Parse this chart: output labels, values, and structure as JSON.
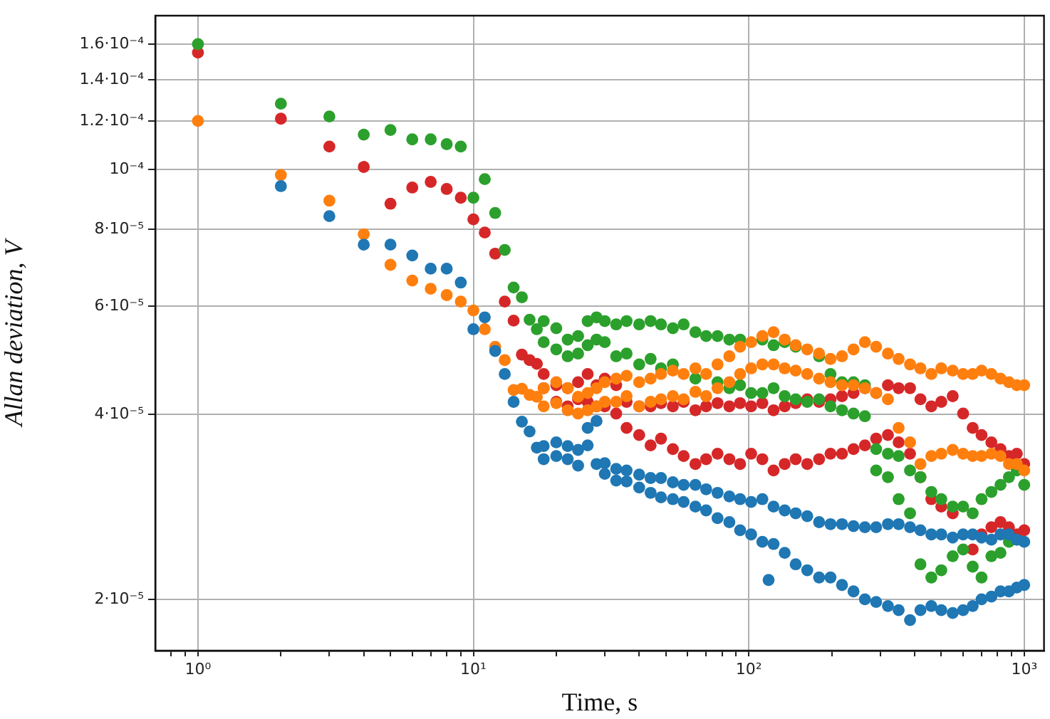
{
  "chart_data": {
    "type": "scatter",
    "xlabel": "Time, s",
    "ylabel": "Allan deviation, V",
    "log": "xy",
    "grid": true,
    "marker": "circle",
    "legend": false,
    "xlim": [
      0.71,
      1180
    ],
    "ylim": [
      1.65e-05,
      0.000178
    ],
    "xticks": [
      {
        "value": 0.8,
        "label": null
      },
      {
        "value": 0.9,
        "label": null
      },
      {
        "value": 1,
        "label": "10⁰"
      },
      {
        "value": 2,
        "label": null
      },
      {
        "value": 3,
        "label": null
      },
      {
        "value": 4,
        "label": null
      },
      {
        "value": 5,
        "label": null
      },
      {
        "value": 6,
        "label": null
      },
      {
        "value": 7,
        "label": null
      },
      {
        "value": 8,
        "label": null
      },
      {
        "value": 9,
        "label": null
      },
      {
        "value": 10,
        "label": "10¹"
      },
      {
        "value": 20,
        "label": null
      },
      {
        "value": 30,
        "label": null
      },
      {
        "value": 40,
        "label": null
      },
      {
        "value": 50,
        "label": null
      },
      {
        "value": 60,
        "label": null
      },
      {
        "value": 70,
        "label": null
      },
      {
        "value": 80,
        "label": null
      },
      {
        "value": 90,
        "label": null
      },
      {
        "value": 100,
        "label": "10²"
      },
      {
        "value": 200,
        "label": null
      },
      {
        "value": 300,
        "label": null
      },
      {
        "value": 400,
        "label": null
      },
      {
        "value": 500,
        "label": null
      },
      {
        "value": 600,
        "label": null
      },
      {
        "value": 700,
        "label": null
      },
      {
        "value": 800,
        "label": null
      },
      {
        "value": 900,
        "label": null
      },
      {
        "value": 1000,
        "label": "10³"
      }
    ],
    "yticks": [
      {
        "value": 2e-05,
        "label": "2·10⁻⁵"
      },
      {
        "value": 4e-05,
        "label": "4·10⁻⁵"
      },
      {
        "value": 6e-05,
        "label": "6·10⁻⁵"
      },
      {
        "value": 8e-05,
        "label": "8·10⁻⁵"
      },
      {
        "value": 0.0001,
        "label": "10⁻⁴"
      },
      {
        "value": 0.00012,
        "label": "1.2·10⁻⁴"
      },
      {
        "value": 0.00014,
        "label": "1.4·10⁻⁴"
      },
      {
        "value": 0.00016,
        "label": "1.6·10⁻⁴"
      }
    ],
    "series": [
      {
        "color": "#1f77b4",
        "x": [
          2,
          3,
          4,
          5,
          6,
          7,
          8,
          9,
          10,
          11,
          12,
          13,
          14,
          15,
          16,
          17,
          18,
          18,
          20,
          20,
          22,
          22,
          24,
          24,
          26,
          26,
          28,
          28,
          30,
          30,
          33,
          33,
          36,
          36,
          40,
          40,
          44,
          44,
          48,
          48,
          53,
          53,
          58,
          58,
          64,
          64,
          70,
          70,
          77,
          77,
          85,
          85,
          93,
          93,
          102,
          102,
          112,
          112,
          118,
          123,
          123,
          135,
          135,
          148,
          148,
          163,
          163,
          180,
          180,
          198,
          198,
          218,
          218,
          240,
          240,
          264,
          264,
          290,
          290,
          320,
          320,
          350,
          350,
          385,
          385,
          420,
          420,
          460,
          460,
          500,
          500,
          550,
          550,
          600,
          600,
          650,
          650,
          700,
          700,
          760,
          760,
          820,
          820,
          880,
          880,
          940,
          940,
          1000,
          1000
        ],
        "values": [
          9.4e-05,
          8.4e-05,
          7.55e-05,
          7.55e-05,
          7.25e-05,
          6.9e-05,
          6.9e-05,
          6.55e-05,
          5.5e-05,
          5.75e-05,
          5.07e-05,
          4.65e-05,
          4.19e-05,
          3.89e-05,
          3.75e-05,
          3.53e-05,
          3.55e-05,
          3.38e-05,
          3.6e-05,
          3.42e-05,
          3.55e-05,
          3.38e-05,
          3.5e-05,
          3.3e-05,
          3.8e-05,
          3.56e-05,
          3.9e-05,
          3.32e-05,
          3.33e-05,
          3.2e-05,
          3.26e-05,
          3.12e-05,
          3.24e-05,
          3.11e-05,
          3.19e-05,
          3.04e-05,
          3.15e-05,
          2.98e-05,
          3.15e-05,
          2.93e-05,
          3.1e-05,
          2.91e-05,
          3.07e-05,
          2.88e-05,
          3.07e-05,
          2.83e-05,
          3.02e-05,
          2.79e-05,
          2.98e-05,
          2.71e-05,
          2.94e-05,
          2.67e-05,
          2.91e-05,
          2.59e-05,
          2.88e-05,
          2.55e-05,
          2.91e-05,
          2.48e-05,
          2.15e-05,
          2.83e-05,
          2.46e-05,
          2.79e-05,
          2.38e-05,
          2.76e-05,
          2.28e-05,
          2.73e-05,
          2.23e-05,
          2.67e-05,
          2.17e-05,
          2.65e-05,
          2.17e-05,
          2.65e-05,
          2.11e-05,
          2.63e-05,
          2.06e-05,
          2.62e-05,
          2e-05,
          2.62e-05,
          1.98e-05,
          2.65e-05,
          1.95e-05,
          2.65e-05,
          1.92e-05,
          2.62e-05,
          1.85e-05,
          2.59e-05,
          1.92e-05,
          2.55e-05,
          1.95e-05,
          2.55e-05,
          1.92e-05,
          2.52e-05,
          1.9e-05,
          2.55e-05,
          1.92e-05,
          2.55e-05,
          1.95e-05,
          2.52e-05,
          2e-05,
          2.5e-05,
          2.02e-05,
          2.55e-05,
          2.06e-05,
          2.55e-05,
          2.06e-05,
          2.5e-05,
          2.09e-05,
          2.48e-05,
          2.11e-05
        ]
      },
      {
        "color": "#ff7f0e",
        "x": [
          1,
          2,
          3,
          4,
          5,
          6,
          7,
          8,
          9,
          10,
          11,
          12,
          13,
          14,
          15,
          16,
          17,
          18,
          18,
          20,
          20,
          22,
          22,
          24,
          24,
          26,
          26,
          28,
          28,
          30,
          30,
          33,
          33,
          36,
          36,
          40,
          40,
          44,
          44,
          48,
          48,
          53,
          53,
          58,
          58,
          64,
          64,
          70,
          70,
          77,
          77,
          85,
          85,
          93,
          93,
          102,
          102,
          112,
          112,
          123,
          123,
          135,
          135,
          148,
          148,
          163,
          163,
          180,
          180,
          198,
          198,
          218,
          218,
          240,
          240,
          264,
          264,
          290,
          290,
          320,
          320,
          350,
          350,
          385,
          385,
          420,
          420,
          460,
          460,
          500,
          500,
          550,
          550,
          600,
          600,
          650,
          650,
          700,
          700,
          760,
          760,
          820,
          820,
          880,
          880,
          940,
          940,
          1000,
          1000
        ],
        "values": [
          0.00012,
          9.8e-05,
          8.9e-05,
          7.85e-05,
          7e-05,
          6.6e-05,
          6.4e-05,
          6.25e-05,
          6.1e-05,
          5.9e-05,
          5.5e-05,
          5.15e-05,
          4.9e-05,
          4.38e-05,
          4.4e-05,
          4.3e-05,
          4.27e-05,
          4.41e-05,
          4.12e-05,
          4.51e-05,
          4.17e-05,
          4.41e-05,
          4.06e-05,
          4.27e-05,
          4.01e-05,
          4.33e-05,
          4.06e-05,
          4.41e-05,
          4.12e-05,
          4.51e-05,
          4.19e-05,
          4.57e-05,
          4.19e-05,
          4.62e-05,
          4.28e-05,
          4.51e-05,
          4.12e-05,
          4.57e-05,
          4.19e-05,
          4.65e-05,
          4.23e-05,
          4.71e-05,
          4.28e-05,
          4.65e-05,
          4.23e-05,
          4.75e-05,
          4.35e-05,
          4.65e-05,
          4.28e-05,
          4.82e-05,
          4.41e-05,
          4.97e-05,
          4.51e-05,
          5.15e-05,
          4.65e-05,
          5.24e-05,
          4.75e-05,
          5.36e-05,
          4.82e-05,
          5.44e-05,
          4.82e-05,
          5.29e-05,
          4.75e-05,
          5.18e-05,
          4.71e-05,
          5.1e-05,
          4.65e-05,
          5.02e-05,
          4.57e-05,
          4.92e-05,
          4.51e-05,
          4.97e-05,
          4.46e-05,
          5.1e-05,
          4.46e-05,
          5.24e-05,
          4.41e-05,
          5.15e-05,
          4.33e-05,
          5.02e-05,
          4.23e-05,
          4.92e-05,
          3.8e-05,
          4.82e-05,
          3.6e-05,
          4.75e-05,
          3.32e-05,
          4.65e-05,
          3.42e-05,
          4.75e-05,
          3.45e-05,
          4.71e-05,
          3.5e-05,
          4.65e-05,
          3.45e-05,
          4.65e-05,
          3.42e-05,
          4.71e-05,
          3.42e-05,
          4.65e-05,
          3.45e-05,
          4.57e-05,
          3.42e-05,
          4.51e-05,
          3.32e-05,
          4.46e-05,
          3.32e-05,
          4.46e-05,
          3.24e-05
        ]
      },
      {
        "color": "#2ca02c",
        "x": [
          1,
          2,
          3,
          4,
          5,
          6,
          7,
          8,
          9,
          10,
          11,
          12,
          13,
          14,
          15,
          16,
          17,
          18,
          18,
          20,
          20,
          22,
          22,
          24,
          24,
          26,
          26,
          28,
          28,
          30,
          30,
          33,
          33,
          36,
          36,
          40,
          40,
          44,
          44,
          48,
          48,
          53,
          53,
          58,
          64,
          64,
          70,
          77,
          77,
          85,
          85,
          93,
          93,
          102,
          112,
          112,
          123,
          123,
          135,
          135,
          148,
          148,
          163,
          180,
          180,
          198,
          198,
          218,
          218,
          240,
          240,
          264,
          264,
          290,
          290,
          320,
          320,
          350,
          350,
          385,
          385,
          420,
          420,
          460,
          460,
          500,
          500,
          550,
          550,
          600,
          600,
          650,
          650,
          700,
          700,
          760,
          760,
          820,
          820,
          880,
          880,
          940,
          940,
          1000
        ],
        "values": [
          0.00016,
          0.000128,
          0.000122,
          0.000114,
          0.000116,
          0.000112,
          0.000112,
          0.00011,
          0.000109,
          9e-05,
          9.65e-05,
          8.5e-05,
          7.4e-05,
          6.43e-05,
          6.2e-05,
          5.7e-05,
          5.5e-05,
          5.67e-05,
          5.24e-05,
          5.52e-05,
          5.1e-05,
          5.29e-05,
          4.97e-05,
          5.36e-05,
          5.02e-05,
          5.67e-05,
          5.18e-05,
          5.75e-05,
          5.29e-05,
          5.67e-05,
          5.24e-05,
          5.6e-05,
          4.97e-05,
          5.67e-05,
          5.02e-05,
          5.6e-05,
          4.82e-05,
          5.67e-05,
          4.92e-05,
          5.6e-05,
          4.75e-05,
          5.52e-05,
          4.82e-05,
          5.6e-05,
          5.44e-05,
          4.57e-05,
          5.36e-05,
          5.36e-05,
          4.51e-05,
          5.29e-05,
          4.41e-05,
          5.29e-05,
          4.46e-05,
          4.33e-05,
          5.29e-05,
          4.33e-05,
          5.18e-05,
          4.41e-05,
          5.24e-05,
          4.28e-05,
          5.15e-05,
          4.23e-05,
          4.19e-05,
          4.97e-05,
          4.23e-05,
          4.65e-05,
          4.12e-05,
          4.51e-05,
          4.06e-05,
          4.51e-05,
          4.01e-05,
          4.46e-05,
          3.97e-05,
          3.51e-05,
          3.24e-05,
          3.45e-05,
          3.16e-05,
          3.42e-05,
          2.91e-05,
          3.24e-05,
          2.76e-05,
          3.16e-05,
          2.28e-05,
          2.99e-05,
          2.17e-05,
          2.91e-05,
          2.23e-05,
          2.83e-05,
          2.35e-05,
          2.83e-05,
          2.41e-05,
          2.76e-05,
          2.26e-05,
          2.91e-05,
          2.17e-05,
          2.99e-05,
          2.35e-05,
          3.07e-05,
          2.38e-05,
          3.16e-05,
          2.48e-05,
          3.24e-05,
          2.5e-05,
          3.07e-05
        ]
      },
      {
        "color": "#d62728",
        "x": [
          1,
          2,
          3,
          4,
          5,
          6,
          7,
          8,
          9,
          10,
          11,
          12,
          13,
          14,
          15,
          16,
          17,
          18,
          18,
          20,
          20,
          22,
          22,
          24,
          24,
          26,
          26,
          28,
          28,
          30,
          30,
          33,
          33,
          36,
          36,
          40,
          40,
          44,
          44,
          48,
          48,
          53,
          53,
          58,
          58,
          64,
          64,
          70,
          70,
          77,
          77,
          85,
          85,
          93,
          93,
          102,
          102,
          112,
          112,
          123,
          123,
          135,
          135,
          148,
          148,
          163,
          163,
          180,
          180,
          198,
          198,
          218,
          218,
          240,
          240,
          264,
          264,
          290,
          290,
          320,
          320,
          350,
          350,
          385,
          385,
          420,
          420,
          460,
          460,
          500,
          500,
          550,
          550,
          600,
          650,
          650,
          700,
          700,
          760,
          760,
          820,
          820,
          880,
          880,
          940,
          940,
          1000,
          1000
        ],
        "values": [
          0.000155,
          0.000121,
          0.000109,
          0.000101,
          8.8e-05,
          9.35e-05,
          9.55e-05,
          9.3e-05,
          9e-05,
          8.3e-05,
          7.9e-05,
          7.3e-05,
          6.1e-05,
          5.68e-05,
          5e-05,
          4.9e-05,
          4.83e-05,
          4.65e-05,
          4.41e-05,
          4.46e-05,
          4.19e-05,
          4.41e-05,
          4.12e-05,
          4.51e-05,
          4.23e-05,
          4.65e-05,
          4.19e-05,
          4.46e-05,
          4.12e-05,
          4.57e-05,
          4.12e-05,
          4.46e-05,
          4.01e-05,
          4.19e-05,
          3.8e-05,
          4.12e-05,
          3.7e-05,
          4.12e-05,
          3.56e-05,
          4.17e-05,
          3.65e-05,
          4.12e-05,
          3.51e-05,
          4.19e-05,
          3.42e-05,
          4.06e-05,
          3.32e-05,
          4.12e-05,
          3.38e-05,
          4.17e-05,
          3.45e-05,
          4.12e-05,
          3.38e-05,
          4.17e-05,
          3.32e-05,
          4.12e-05,
          3.45e-05,
          4.17e-05,
          3.38e-05,
          4.06e-05,
          3.24e-05,
          4.12e-05,
          3.32e-05,
          4.17e-05,
          3.38e-05,
          4.23e-05,
          3.32e-05,
          4.19e-05,
          3.38e-05,
          4.23e-05,
          3.45e-05,
          4.28e-05,
          3.45e-05,
          4.33e-05,
          3.51e-05,
          4.41e-05,
          3.56e-05,
          4.33e-05,
          3.65e-05,
          4.46e-05,
          3.7e-05,
          4.41e-05,
          3.6e-05,
          4.41e-05,
          3.45e-05,
          4.23e-05,
          3.16e-05,
          4.12e-05,
          2.91e-05,
          4.19e-05,
          2.83e-05,
          4.28e-05,
          2.76e-05,
          4.01e-05,
          3.8e-05,
          2.41e-05,
          3.7e-05,
          2.55e-05,
          3.6e-05,
          2.62e-05,
          3.51e-05,
          2.67e-05,
          3.42e-05,
          2.62e-05,
          3.45e-05,
          2.55e-05,
          3.32e-05,
          2.59e-05
        ]
      }
    ]
  }
}
